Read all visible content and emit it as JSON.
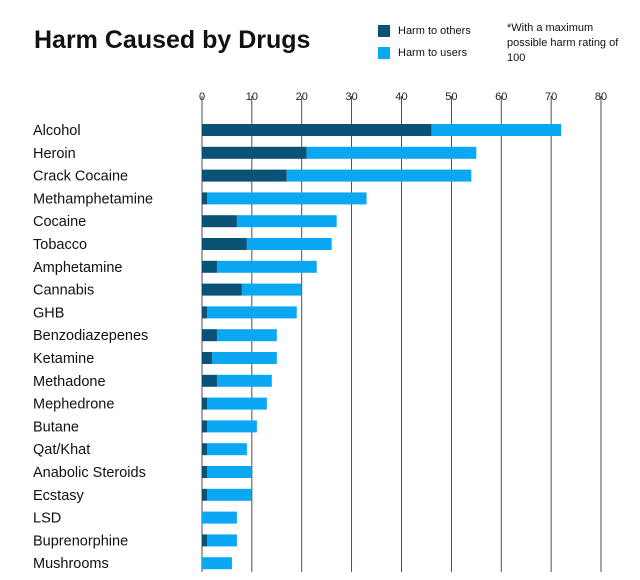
{
  "chart_data": {
    "type": "bar",
    "orientation": "horizontal",
    "stacked": true,
    "title": "Harm Caused by Drugs",
    "note": "*With a maximum possible harm rating of 100",
    "xlim": [
      0,
      80
    ],
    "xticks": [
      0,
      10,
      20,
      30,
      40,
      50,
      60,
      70,
      80
    ],
    "grid": true,
    "legend_position": "top-right",
    "categories": [
      "Alcohol",
      "Heroin",
      "Crack Cocaine",
      "Methamphetamine",
      "Cocaine",
      "Tobacco",
      "Amphetamine",
      "Cannabis",
      "GHB",
      "Benzodiazepenes",
      "Ketamine",
      "Methadone",
      "Mephedrone",
      "Butane",
      "Qat/Khat",
      "Anabolic Steroids",
      "Ecstasy",
      "LSD",
      "Buprenorphine",
      "Mushrooms"
    ],
    "series": [
      {
        "name": "Harm to others",
        "color": "#0b5277",
        "values": [
          46,
          21,
          17,
          1,
          7,
          9,
          3,
          8,
          1,
          3,
          2,
          3,
          1,
          1,
          1,
          1,
          1,
          0,
          1,
          0
        ]
      },
      {
        "name": "Harm to users",
        "color": "#0aa8f2",
        "values": [
          26,
          34,
          37,
          32,
          20,
          17,
          20,
          12,
          18,
          12,
          13,
          11,
          12,
          10,
          8,
          9,
          9,
          7,
          6,
          6
        ]
      }
    ]
  }
}
